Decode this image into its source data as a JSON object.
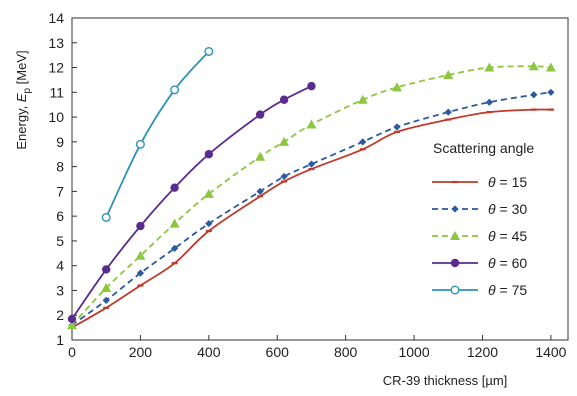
{
  "chart_data": {
    "type": "line",
    "xlabel": "CR-39 thickness [µm]",
    "ylabel_prefix": "Energy, ",
    "ylabel_var": "E",
    "ylabel_sub": "p",
    "ylabel_unit": " [MeV]",
    "xlim": [
      0,
      1450
    ],
    "ylim": [
      1,
      14
    ],
    "xticks": [
      "0",
      "200",
      "400",
      "600",
      "800",
      "1000",
      "1200",
      "1400"
    ],
    "yticks": [
      "1",
      "2",
      "3",
      "4",
      "5",
      "6",
      "7",
      "8",
      "9",
      "10",
      "11",
      "12",
      "13",
      "14"
    ],
    "grid": false,
    "legend": {
      "title": "Scattering angle",
      "placement": "right",
      "theta_symbol": "θ",
      "equals": " = "
    },
    "series": [
      {
        "name": "15",
        "color": "#c0392b",
        "marker": "bar",
        "dash": "solid",
        "x": [
          0,
          100,
          200,
          300,
          400,
          550,
          620,
          700,
          850,
          950,
          1100,
          1220,
          1350,
          1400
        ],
        "y": [
          1.5,
          2.3,
          3.2,
          4.1,
          5.4,
          6.8,
          7.4,
          7.9,
          8.7,
          9.4,
          9.9,
          10.2,
          10.3,
          10.3
        ]
      },
      {
        "name": "30",
        "color": "#2c5aa0",
        "marker": "diamond",
        "dash": "dashed",
        "x": [
          0,
          100,
          200,
          300,
          400,
          550,
          620,
          700,
          850,
          950,
          1100,
          1220,
          1350,
          1400
        ],
        "y": [
          1.6,
          2.6,
          3.7,
          4.7,
          5.7,
          7.0,
          7.6,
          8.1,
          9.0,
          9.6,
          10.2,
          10.6,
          10.9,
          11.0
        ]
      },
      {
        "name": "45",
        "color": "#8dc63f",
        "marker": "triangle",
        "dash": "dashed",
        "x": [
          0,
          100,
          200,
          300,
          400,
          550,
          620,
          700,
          850,
          950,
          1100,
          1220,
          1350,
          1400
        ],
        "y": [
          1.6,
          3.1,
          4.4,
          5.7,
          6.9,
          8.4,
          9.0,
          9.7,
          10.7,
          11.2,
          11.7,
          12.0,
          12.05,
          12.0
        ]
      },
      {
        "name": "60",
        "color": "#5b2c8f",
        "marker": "filled-circle",
        "dash": "solid",
        "x": [
          0,
          100,
          200,
          300,
          400,
          550,
          620,
          700
        ],
        "y": [
          1.85,
          3.85,
          5.6,
          7.15,
          8.5,
          10.1,
          10.7,
          11.25
        ]
      },
      {
        "name": "75",
        "color": "#2b93b8",
        "marker": "open-circle",
        "dash": "solid",
        "x": [
          100,
          200,
          300,
          400
        ],
        "y": [
          5.95,
          8.9,
          11.1,
          12.65
        ]
      }
    ]
  }
}
